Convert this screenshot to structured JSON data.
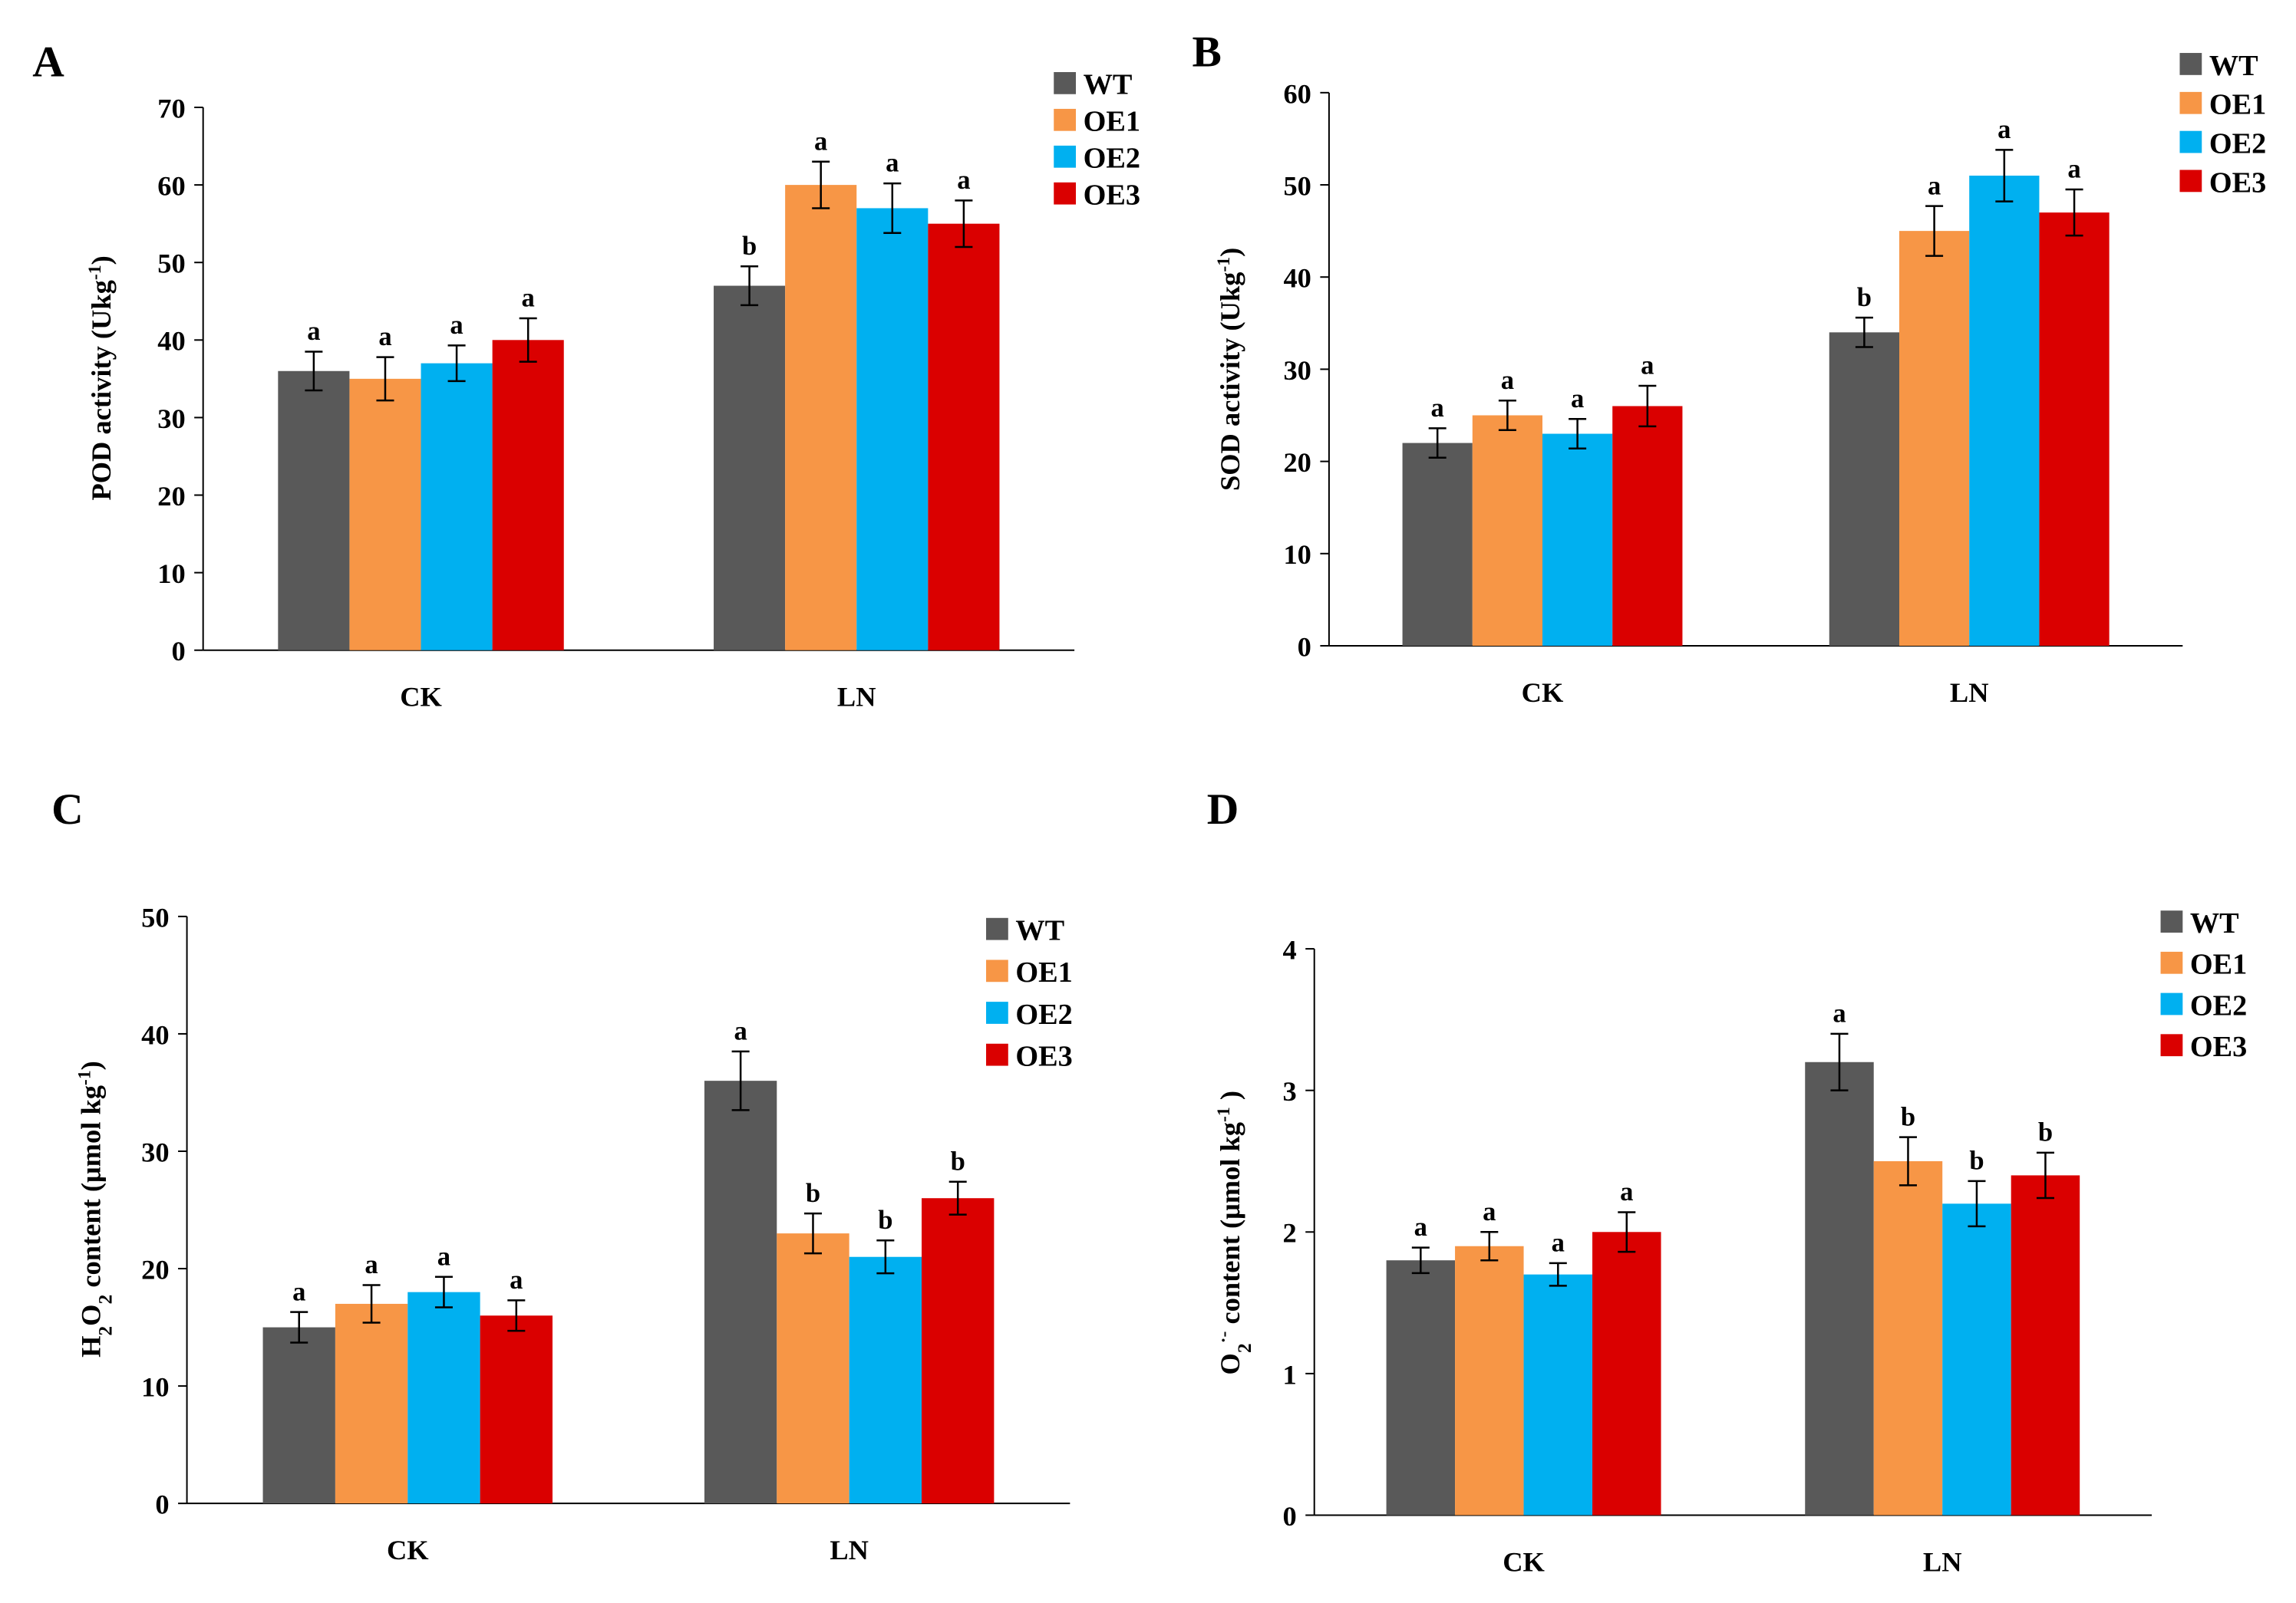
{
  "colors": {
    "WT": "#595959",
    "OE1": "#F79646",
    "OE2": "#00B0F0",
    "OE3": "#DA0000"
  },
  "chart_data": [
    {
      "panel": "A",
      "type": "bar",
      "categories": [
        "CK",
        "LN"
      ],
      "legend": [
        "WT",
        "OE1",
        "OE2",
        "OE3"
      ],
      "legend_position": "top-right",
      "ylabel_parts": [
        {
          "t": "POD activity (Ukg"
        },
        {
          "t": "-1",
          "sup": true
        },
        {
          "t": ")"
        }
      ],
      "ylim": [
        0,
        70
      ],
      "yticks": [
        0,
        10,
        20,
        30,
        40,
        50,
        60,
        70
      ],
      "series": [
        {
          "name": "WT",
          "values": [
            36,
            47
          ],
          "errors": [
            2.5,
            2.5
          ],
          "letters": [
            "a",
            "b"
          ]
        },
        {
          "name": "OE1",
          "values": [
            35,
            60
          ],
          "errors": [
            2.8,
            3.0
          ],
          "letters": [
            "a",
            "a"
          ]
        },
        {
          "name": "OE2",
          "values": [
            37,
            57
          ],
          "errors": [
            2.3,
            3.2
          ],
          "letters": [
            "a",
            "a"
          ]
        },
        {
          "name": "OE3",
          "values": [
            40,
            55
          ],
          "errors": [
            2.8,
            3.0
          ],
          "letters": [
            "a",
            "a"
          ]
        }
      ]
    },
    {
      "panel": "B",
      "type": "bar",
      "categories": [
        "CK",
        "LN"
      ],
      "legend": [
        "WT",
        "OE1",
        "OE2",
        "OE3"
      ],
      "legend_position": "top-right",
      "ylabel_parts": [
        {
          "t": "SOD activity (Ukg"
        },
        {
          "t": "-1",
          "sup": true
        },
        {
          "t": ")"
        }
      ],
      "ylim": [
        0,
        60
      ],
      "yticks": [
        0,
        10,
        20,
        30,
        40,
        50,
        60
      ],
      "series": [
        {
          "name": "WT",
          "values": [
            22,
            34
          ],
          "errors": [
            1.6,
            1.6
          ],
          "letters": [
            "a",
            "b"
          ]
        },
        {
          "name": "OE1",
          "values": [
            25,
            45
          ],
          "errors": [
            1.6,
            2.7
          ],
          "letters": [
            "a",
            "a"
          ]
        },
        {
          "name": "OE2",
          "values": [
            23,
            51
          ],
          "errors": [
            1.6,
            2.8
          ],
          "letters": [
            "a",
            "a"
          ]
        },
        {
          "name": "OE3",
          "values": [
            26,
            47
          ],
          "errors": [
            2.2,
            2.5
          ],
          "letters": [
            "a",
            "a"
          ]
        }
      ]
    },
    {
      "panel": "C",
      "type": "bar",
      "categories": [
        "CK",
        "LN"
      ],
      "legend": [
        "WT",
        "OE1",
        "OE2",
        "OE3"
      ],
      "legend_position": "top-right",
      "ylabel_parts": [
        {
          "t": "H"
        },
        {
          "t": "2",
          "sub": true
        },
        {
          "t": "O"
        },
        {
          "t": "2",
          "sub": true
        },
        {
          "t": " content (μmol kg"
        },
        {
          "t": "-1",
          "sup": true
        },
        {
          "t": ")"
        }
      ],
      "ylim": [
        0,
        50
      ],
      "yticks": [
        0,
        10,
        20,
        30,
        40,
        50
      ],
      "series": [
        {
          "name": "WT",
          "values": [
            15,
            36
          ],
          "errors": [
            1.3,
            2.5
          ],
          "letters": [
            "a",
            "a"
          ]
        },
        {
          "name": "OE1",
          "values": [
            17,
            23
          ],
          "errors": [
            1.6,
            1.7
          ],
          "letters": [
            "a",
            "b"
          ]
        },
        {
          "name": "OE2",
          "values": [
            18,
            21
          ],
          "errors": [
            1.3,
            1.4
          ],
          "letters": [
            "a",
            "b"
          ]
        },
        {
          "name": "OE3",
          "values": [
            16,
            26
          ],
          "errors": [
            1.3,
            1.4
          ],
          "letters": [
            "a",
            "b"
          ]
        }
      ]
    },
    {
      "panel": "D",
      "type": "bar",
      "categories": [
        "CK",
        "LN"
      ],
      "legend": [
        "WT",
        "OE1",
        "OE2",
        "OE3"
      ],
      "legend_position": "top-right",
      "ylabel_parts": [
        {
          "t": "O"
        },
        {
          "t": "2",
          "sub": true
        },
        {
          "t": "·-",
          "sup": true
        },
        {
          "t": " content (μmol kg"
        },
        {
          "t": "-1",
          "sup": true
        },
        {
          "t": " )"
        }
      ],
      "ylim": [
        0,
        4
      ],
      "yticks": [
        0,
        1,
        2,
        3,
        4
      ],
      "series": [
        {
          "name": "WT",
          "values": [
            1.8,
            3.2
          ],
          "errors": [
            0.09,
            0.2
          ],
          "letters": [
            "a",
            "a"
          ]
        },
        {
          "name": "OE1",
          "values": [
            1.9,
            2.5
          ],
          "errors": [
            0.1,
            0.17
          ],
          "letters": [
            "a",
            "b"
          ]
        },
        {
          "name": "OE2",
          "values": [
            1.7,
            2.2
          ],
          "errors": [
            0.08,
            0.16
          ],
          "letters": [
            "a",
            "b"
          ]
        },
        {
          "name": "OE3",
          "values": [
            2.0,
            2.4
          ],
          "errors": [
            0.14,
            0.16
          ],
          "letters": [
            "a",
            "b"
          ]
        }
      ]
    }
  ]
}
